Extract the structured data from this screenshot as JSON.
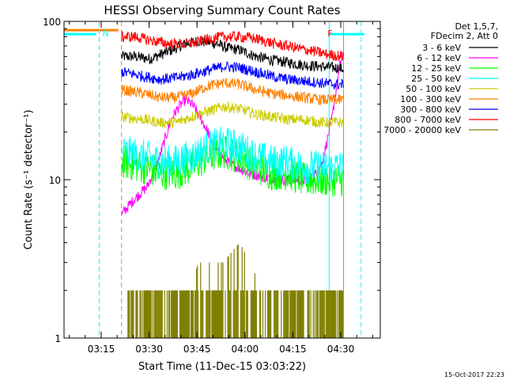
{
  "chart_data": {
    "type": "line",
    "title": "HESSI Observing Summary Count Rates",
    "xlabel": "Start Time (11-Dec-15 03:03:22)",
    "ylabel": "Count Rate (s⁻¹ detector⁻¹)",
    "x_units": "minutes after 03:03:22 UT",
    "xlim": [
      0,
      99
    ],
    "ylim": [
      1,
      100
    ],
    "y_scale": "log",
    "x_tick_labels": [
      "03:15",
      "03:30",
      "03:45",
      "04:00",
      "04:15",
      "04:30"
    ],
    "x_tick_values": [
      11.63,
      26.63,
      41.63,
      56.63,
      71.63,
      86.63
    ],
    "y_tick_labels": [
      "1",
      "10",
      "100"
    ],
    "y_tick_values": [
      1,
      10,
      100
    ],
    "grid": false,
    "legend_position": "top-right",
    "legend_header": [
      "Det 1,5,7,",
      "FDecim 2, Att 0"
    ],
    "series": [
      {
        "name": "3 - 6 keV",
        "color": "#000000",
        "x": [
          18,
          22,
          27,
          33,
          38,
          42,
          45,
          48,
          51,
          55,
          60,
          65,
          70,
          75,
          80,
          85,
          87.5
        ],
        "values": [
          60,
          60,
          58,
          65,
          72,
          75,
          74,
          72,
          68,
          66,
          60,
          57,
          55,
          53,
          52,
          51,
          50
        ]
      },
      {
        "name": "6 - 12 keV",
        "color": "#ff00ff",
        "x": [
          18,
          26,
          28,
          30,
          32,
          34,
          36,
          38,
          40,
          42,
          44,
          46,
          48,
          51,
          54,
          58,
          62,
          66,
          70,
          74,
          77,
          79,
          81,
          82.5,
          84,
          85.5,
          86.5,
          87.5
        ],
        "values": [
          6,
          9,
          11,
          14,
          19,
          25,
          29,
          32,
          30,
          26,
          22,
          18,
          15,
          13,
          12,
          11,
          10.5,
          10,
          10,
          10,
          10,
          11,
          13,
          18,
          25,
          40,
          55,
          60
        ]
      },
      {
        "name": "12 - 25 keV",
        "color": "#00ff00",
        "x": [
          18,
          25,
          30,
          35,
          40,
          45,
          50,
          55,
          60,
          65,
          70,
          75,
          80,
          85,
          87.5
        ],
        "values": [
          13,
          12,
          11,
          11,
          12,
          14,
          15,
          14,
          12,
          11,
          11,
          10,
          10,
          10,
          10
        ]
      },
      {
        "name": "25 - 50 keV",
        "color": "#00ffff",
        "x": [
          18,
          25,
          30,
          35,
          40,
          45,
          50,
          55,
          60,
          65,
          70,
          75,
          80,
          85,
          87.5
        ],
        "values": [
          15,
          14,
          13,
          13,
          14,
          16,
          17,
          16,
          14,
          13,
          13,
          12,
          12,
          12,
          12
        ]
      },
      {
        "name": "50 - 100 keV",
        "color": "#cccc00",
        "x": [
          18,
          25,
          30,
          35,
          40,
          45,
          50,
          55,
          60,
          65,
          70,
          75,
          80,
          85,
          87.5
        ],
        "values": [
          25,
          24,
          23,
          23,
          25,
          27,
          29,
          28,
          26,
          25,
          24,
          24,
          23,
          23,
          23
        ]
      },
      {
        "name": "100 - 300 keV",
        "color": "#ff8000",
        "x": [
          18,
          25,
          30,
          35,
          40,
          45,
          50,
          55,
          60,
          65,
          70,
          75,
          80,
          85,
          87.5
        ],
        "values": [
          37,
          35,
          33,
          33,
          35,
          39,
          41,
          40,
          37,
          35,
          34,
          33,
          32,
          32,
          32
        ]
      },
      {
        "name": "300 - 800 keV",
        "color": "#0000ff",
        "x": [
          18,
          25,
          30,
          35,
          40,
          45,
          50,
          55,
          60,
          65,
          70,
          75,
          80,
          85,
          87.5
        ],
        "values": [
          48,
          45,
          43,
          44,
          46,
          49,
          52,
          51,
          48,
          45,
          43,
          42,
          41,
          40,
          40
        ]
      },
      {
        "name": "800 - 7000 keV",
        "color": "#ff0000",
        "x": [
          18,
          22,
          27,
          33,
          38,
          42,
          46,
          50,
          54,
          58,
          62,
          66,
          70,
          74,
          78,
          82,
          87.5
        ],
        "values": [
          80,
          80,
          76,
          72,
          72,
          74,
          78,
          80,
          80,
          79,
          76,
          72,
          70,
          67,
          65,
          62,
          60
        ]
      },
      {
        "name": "7000 - 20000 keV",
        "color": "#808000",
        "x": [
          20,
          30,
          40,
          42,
          50,
          55,
          58,
          62,
          70,
          80,
          87.5
        ],
        "values": [
          2,
          2,
          2,
          3,
          3,
          4,
          3,
          2,
          2,
          2,
          2
        ]
      }
    ],
    "annotations": [
      {
        "label": "N",
        "color": "#00ffff",
        "x": 11,
        "y": 85
      },
      {
        "label": "F",
        "color": "#ff0000",
        "x": 81.5,
        "y": 85
      }
    ],
    "vertical_markers": [
      {
        "x": 11,
        "color": "#00ffff",
        "style": "dashed"
      },
      {
        "x": 18,
        "color": "#ff8000",
        "style": "dashed"
      },
      {
        "x": 83,
        "color": "#00ffff",
        "style": "solid"
      },
      {
        "x": 87.5,
        "color": "#ff8000",
        "style": "solid"
      },
      {
        "x": 93,
        "color": "#00ffff",
        "style": "dashed"
      }
    ],
    "status_bars": [
      {
        "color": "#00ffff",
        "x_start": 0,
        "x_end": 10,
        "y": 83
      },
      {
        "color": "#ff8000",
        "x_start": 0,
        "x_end": 17,
        "y": 88
      },
      {
        "color": "#00ffff",
        "x_start": 83,
        "x_end": 94,
        "y": 83
      }
    ],
    "timestamp": "15-Oct-2017 22:23"
  }
}
